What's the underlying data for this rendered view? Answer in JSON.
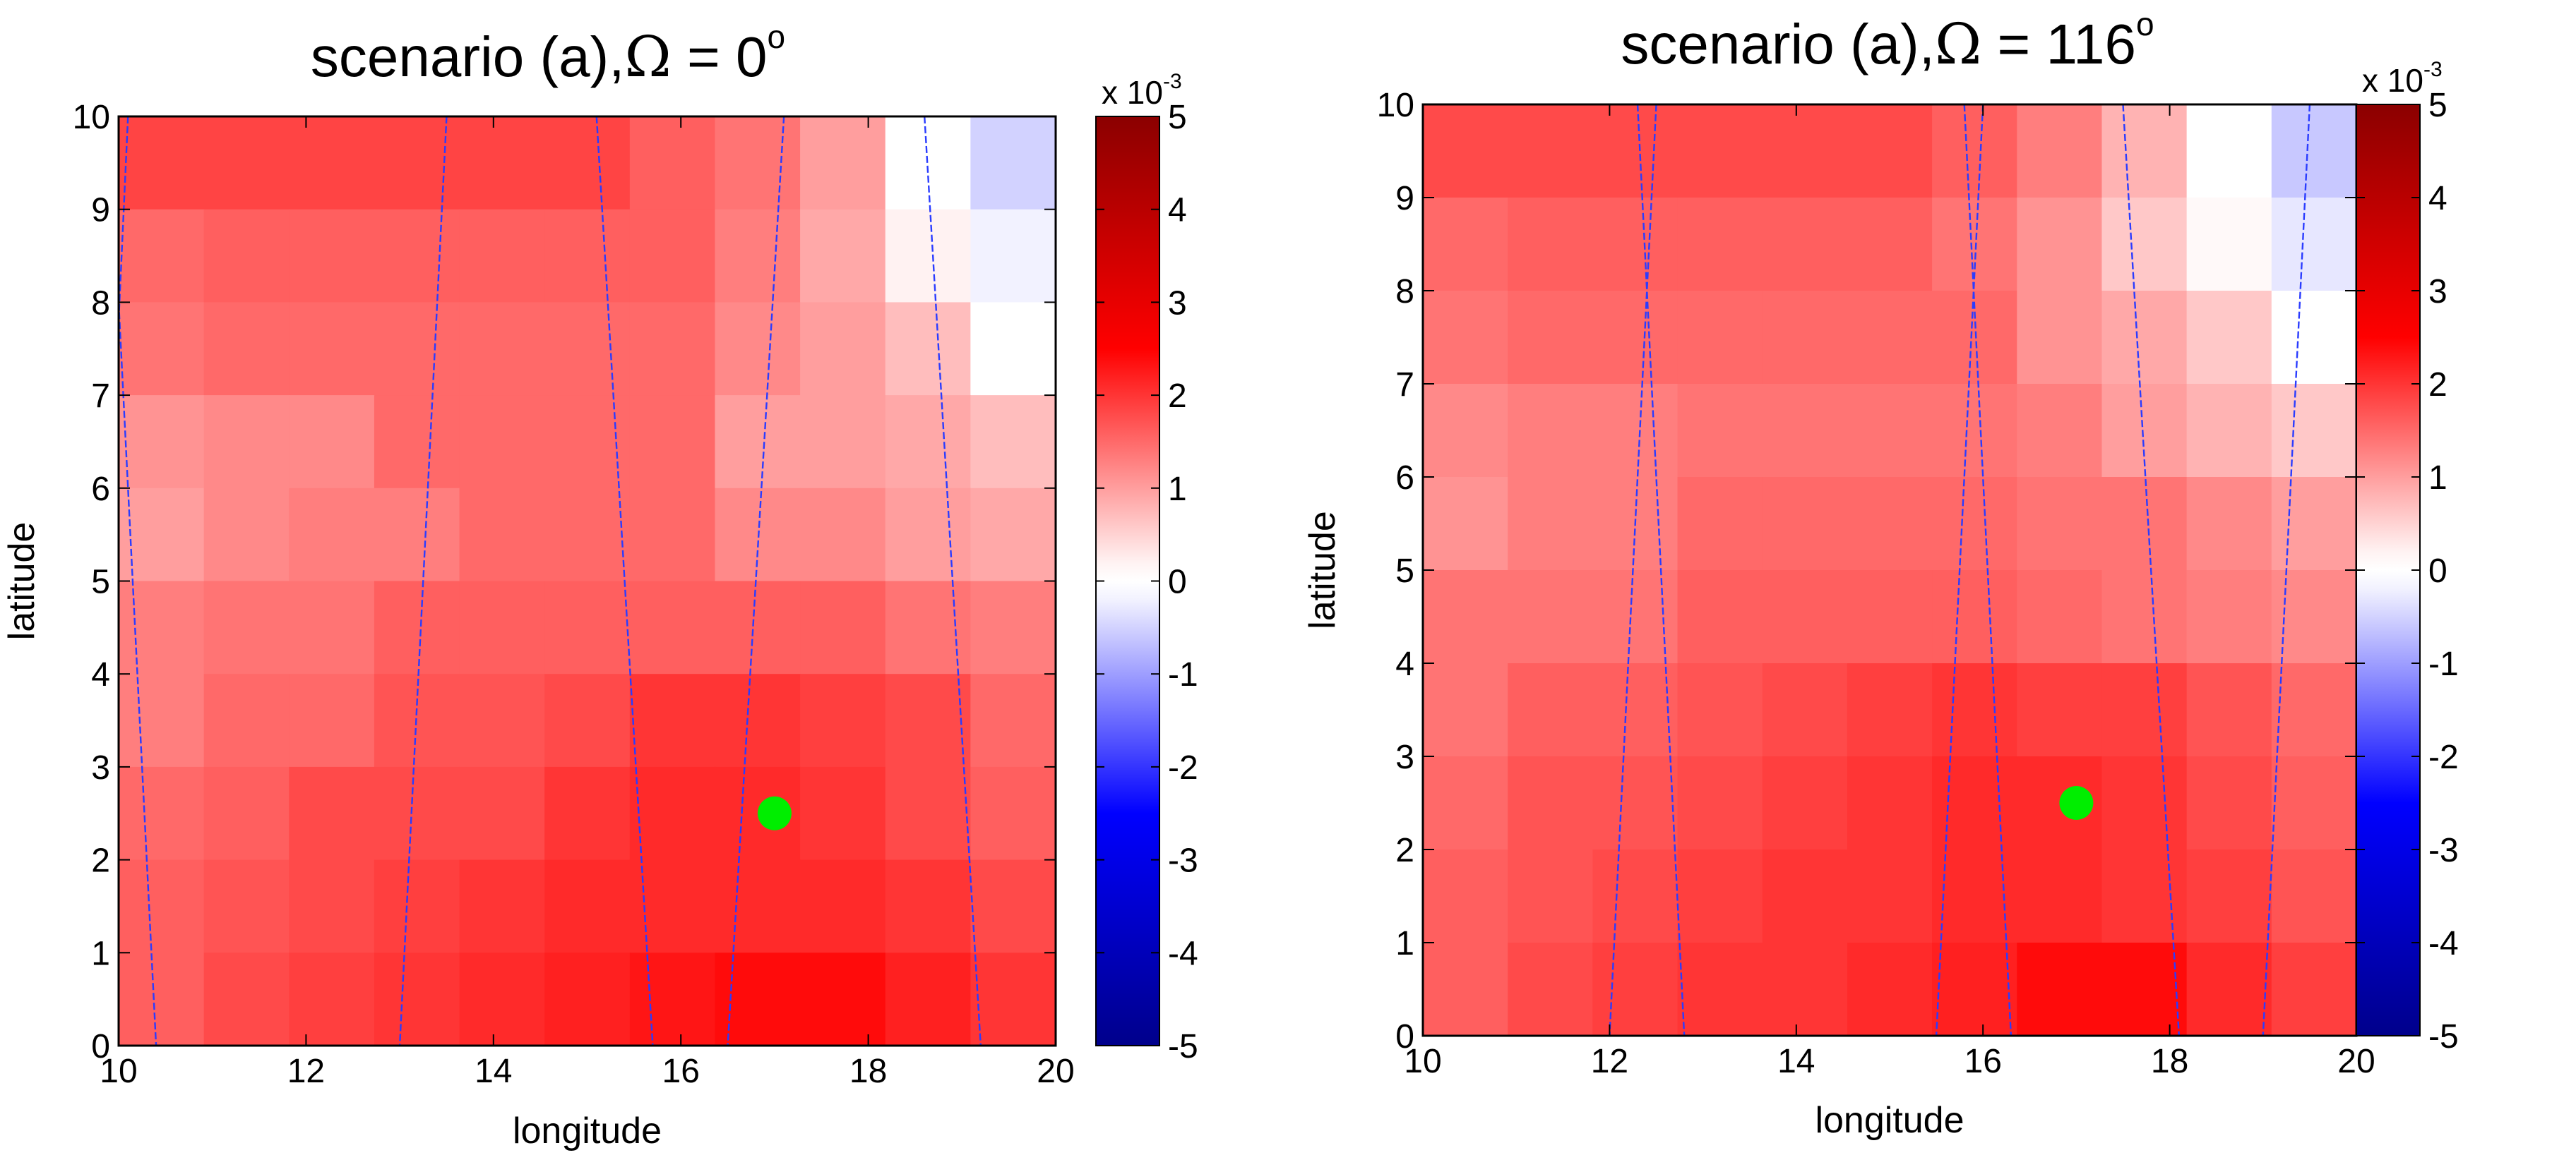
{
  "chart_data": [
    {
      "type": "heatmap",
      "title_prefix": "scenario (a),",
      "title_symbol": "Ω",
      "title_suffix": " = 0",
      "title_sup": "o",
      "xlabel": "longitude",
      "ylabel": "latitude",
      "xlim": [
        10,
        20
      ],
      "ylim": [
        0,
        10
      ],
      "xticks": [
        "10",
        "12",
        "14",
        "16",
        "18",
        "20"
      ],
      "yticks": [
        "0",
        "1",
        "2",
        "3",
        "4",
        "5",
        "6",
        "7",
        "8",
        "9",
        "10"
      ],
      "grid_units": "row 0 = latitude 9-10 (top), column 0 = longitude 10-11",
      "grid": [
        [
          1.85,
          1.85,
          1.85,
          1.85,
          1.85,
          1.85,
          1.6,
          1.4,
          1.0,
          0.0,
          -0.5
        ],
        [
          1.5,
          1.6,
          1.6,
          1.6,
          1.6,
          1.6,
          1.6,
          1.3,
          0.9,
          0.2,
          -0.2
        ],
        [
          1.4,
          1.5,
          1.5,
          1.5,
          1.5,
          1.5,
          1.5,
          1.2,
          1.0,
          0.7,
          0.0
        ],
        [
          1.1,
          1.2,
          1.2,
          1.5,
          1.5,
          1.5,
          1.5,
          1.0,
          1.0,
          0.9,
          0.7
        ],
        [
          1.0,
          1.2,
          1.3,
          1.3,
          1.5,
          1.5,
          1.5,
          1.2,
          1.2,
          1.0,
          0.9
        ],
        [
          1.3,
          1.4,
          1.4,
          1.6,
          1.6,
          1.6,
          1.6,
          1.6,
          1.6,
          1.4,
          1.3
        ],
        [
          1.3,
          1.5,
          1.5,
          1.7,
          1.7,
          1.8,
          2.0,
          2.0,
          1.9,
          1.8,
          1.5
        ],
        [
          1.5,
          1.6,
          1.8,
          1.8,
          1.8,
          2.0,
          2.1,
          2.1,
          2.0,
          1.8,
          1.6
        ],
        [
          1.6,
          1.7,
          1.8,
          1.9,
          2.0,
          2.1,
          2.1,
          2.1,
          2.1,
          2.0,
          1.8
        ],
        [
          1.6,
          1.8,
          1.9,
          2.0,
          2.1,
          2.2,
          2.3,
          2.4,
          2.4,
          2.2,
          2.0
        ]
      ],
      "marker": {
        "longitude": 17.0,
        "latitude": 2.5,
        "color": "#00ee00"
      },
      "contour_lines": [
        [
          [
            10.0,
            8.0
          ],
          [
            10.4,
            0
          ]
        ],
        [
          [
            10.1,
            10
          ],
          [
            10.0,
            7.8
          ]
        ],
        [
          [
            13.5,
            10
          ],
          [
            13.0,
            0
          ]
        ],
        [
          [
            15.1,
            10
          ],
          [
            15.7,
            0
          ]
        ],
        [
          [
            17.1,
            10
          ],
          [
            16.5,
            0
          ]
        ],
        [
          [
            18.6,
            10
          ],
          [
            19.2,
            0
          ]
        ]
      ],
      "colorbar": {
        "min": -5,
        "max": 5,
        "ticks": [
          "-5",
          "-4",
          "-3",
          "-2",
          "-1",
          "0",
          "1",
          "2",
          "3",
          "4",
          "5"
        ],
        "exponent_prefix": "x 10",
        "exponent": "-3"
      }
    },
    {
      "type": "heatmap",
      "title_prefix": "scenario (a),",
      "title_symbol": "Ω",
      "title_suffix": " = 116",
      "title_sup": "o",
      "xlabel": "longitude",
      "ylabel": "latitude",
      "xlim": [
        10,
        20
      ],
      "ylim": [
        0,
        10
      ],
      "xticks": [
        "10",
        "12",
        "14",
        "16",
        "18",
        "20"
      ],
      "yticks": [
        "0",
        "1",
        "2",
        "3",
        "4",
        "5",
        "6",
        "7",
        "8",
        "9",
        "10"
      ],
      "grid_units": "row 0 = latitude 9-10 (top), column 0 = longitude 10-11",
      "grid": [
        [
          1.8,
          1.8,
          1.8,
          1.8,
          1.8,
          1.8,
          1.6,
          1.3,
          0.8,
          0.0,
          -0.6
        ],
        [
          1.5,
          1.6,
          1.6,
          1.6,
          1.6,
          1.6,
          1.4,
          1.1,
          0.6,
          0.1,
          -0.3
        ],
        [
          1.4,
          1.5,
          1.5,
          1.5,
          1.5,
          1.5,
          1.5,
          1.1,
          0.9,
          0.6,
          0.0
        ],
        [
          1.2,
          1.3,
          1.3,
          1.4,
          1.4,
          1.4,
          1.4,
          1.3,
          1.0,
          0.8,
          0.6
        ],
        [
          1.1,
          1.3,
          1.3,
          1.5,
          1.5,
          1.5,
          1.5,
          1.4,
          1.4,
          1.2,
          1.0
        ],
        [
          1.4,
          1.4,
          1.4,
          1.6,
          1.6,
          1.6,
          1.6,
          1.5,
          1.4,
          1.3,
          1.2
        ],
        [
          1.4,
          1.6,
          1.6,
          1.7,
          1.8,
          1.9,
          2.0,
          1.9,
          1.9,
          1.7,
          1.5
        ],
        [
          1.5,
          1.7,
          1.7,
          1.8,
          1.9,
          2.0,
          2.1,
          2.1,
          2.0,
          1.8,
          1.6
        ],
        [
          1.6,
          1.7,
          1.8,
          1.9,
          2.0,
          2.0,
          2.1,
          2.1,
          2.0,
          1.9,
          1.7
        ],
        [
          1.6,
          1.8,
          1.9,
          2.0,
          2.0,
          2.1,
          2.2,
          2.4,
          2.4,
          2.1,
          1.9
        ]
      ],
      "marker": {
        "longitude": 17.0,
        "latitude": 2.5,
        "color": "#00ee00"
      },
      "contour_lines": [
        [
          [
            12.5,
            10
          ],
          [
            12.0,
            0
          ]
        ],
        [
          [
            12.3,
            10
          ],
          [
            12.8,
            0
          ]
        ],
        [
          [
            15.8,
            10
          ],
          [
            16.3,
            0
          ]
        ],
        [
          [
            16.0,
            10
          ],
          [
            15.5,
            0
          ]
        ],
        [
          [
            17.5,
            10
          ],
          [
            18.1,
            0
          ]
        ],
        [
          [
            19.5,
            10
          ],
          [
            19.0,
            0
          ]
        ]
      ],
      "colorbar": {
        "min": -5,
        "max": 5,
        "ticks": [
          "-5",
          "-4",
          "-3",
          "-2",
          "-1",
          "0",
          "1",
          "2",
          "3",
          "4",
          "5"
        ],
        "exponent_prefix": "x 10",
        "exponent": "-3"
      }
    }
  ]
}
